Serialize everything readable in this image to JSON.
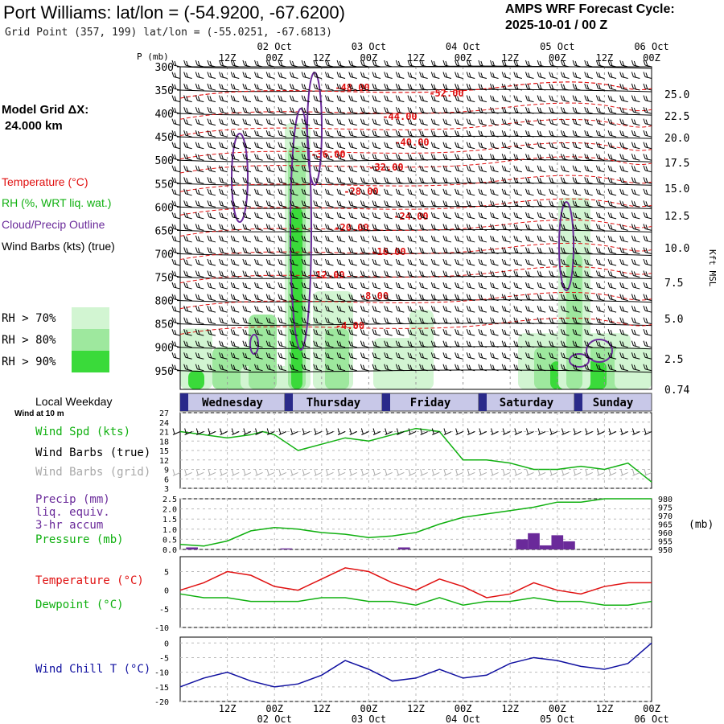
{
  "header": {
    "location_title": "Port Williams:  lat/lon = (-54.9200, -67.6200)",
    "grid_point": "Grid Point (357, 199) lat/lon = (-55.0251, -67.6813)",
    "forecast_title": "AMPS WRF Forecast Cycle:",
    "forecast_cycle": "2025-10-01 / 00  Z"
  },
  "side_labels": {
    "model_grid": "Model Grid ΔX:",
    "grid_spacing": "24.000 km",
    "temperature": "Temperature (°C)",
    "rh": "RH (%, WRT liq. wat.)",
    "cloud": "Cloud/Precip Outline",
    "wind": "Wind Barbs (kts) (true)",
    "rh_legend": [
      "RH > 70%",
      "RH > 80%",
      "RH > 90%"
    ],
    "local_weekday": "Local Weekday",
    "wind_at_10m": "Wind at 10 m",
    "wind_spd": "Wind Spd (kts)",
    "wind_barbs_true": "Wind Barbs (true)",
    "wind_barbs_grid": "Wind Barbs (grid)",
    "precip": "Precip (mm)",
    "liq_equiv": "liq. equiv.",
    "accum": "3-hr accum",
    "pressure": "Pressure (mb)",
    "temp_panel": "Temperature (°C)",
    "dewpoint": "Dewpoint (°C)",
    "wind_chill": "Wind Chill T (°C)"
  },
  "colors": {
    "temp": "#e01010",
    "green": "#10b010",
    "purple": "#6a2a9a",
    "blue": "#1010a0",
    "rh70": "#d2f5d2",
    "rh80": "#9ee89e",
    "rh90": "#3ada3a"
  },
  "chart_data": [
    {
      "type": "time-height cross section",
      "name": "upper-air",
      "ylabel_left": "P (mb)",
      "ylabel_right": "Kft MSL",
      "pressure_ticks": [
        300,
        350,
        400,
        450,
        500,
        550,
        600,
        650,
        700,
        750,
        800,
        850,
        900,
        950
      ],
      "height_ticks": [
        "25.0",
        "22.5",
        "20.0",
        "17.5",
        "15.0",
        "12.5",
        "10.0",
        "7.5",
        "5.0",
        "2.5",
        "0.74"
      ],
      "time_ticks_top": [
        "12Z",
        "00Z",
        "12Z",
        "00Z",
        "12Z",
        "00Z",
        "12Z",
        "00Z",
        "12Z",
        "00Z"
      ],
      "date_ticks": [
        "02 Oct",
        "03 Oct",
        "04 Oct",
        "05 Oct",
        "06 Oct"
      ],
      "temperature_contour_labels": [
        "-48.00",
        "-52.00",
        "-44.00",
        "-40.00",
        "-36.00",
        "-32.00",
        "-28.00",
        "-24.00",
        "-20.00",
        "-16.00",
        "-12.00",
        "-8.00",
        "-4.00"
      ]
    },
    {
      "type": "band",
      "name": "local-weekday",
      "days": [
        "Wednesday",
        "Thursday",
        "Friday",
        "Saturday",
        "Sunday"
      ]
    },
    {
      "type": "line",
      "name": "wind-speed",
      "ylabel": "Wind Spd (kts)",
      "yticks": [
        3,
        6,
        9,
        12,
        15,
        18,
        21,
        24,
        27
      ],
      "ylim": [
        3,
        27
      ],
      "x_hours": [
        0,
        6,
        12,
        18,
        21,
        24,
        30,
        36,
        42,
        48,
        54,
        60,
        66,
        72,
        78,
        84,
        90,
        96,
        102,
        108,
        114,
        120
      ],
      "values": [
        21,
        20,
        19,
        20,
        21,
        20,
        15,
        17,
        19,
        18,
        20,
        22,
        21,
        12,
        12,
        11,
        9,
        9,
        10,
        9,
        11,
        5
      ]
    },
    {
      "type": "bar+line",
      "name": "precip-pressure",
      "ylabel_left": "Precip (mm)",
      "ylabel_right": "(mb)",
      "precip_yticks": [
        "0.0",
        "0.5",
        "1.0",
        "1.5",
        "2.0",
        "2.5"
      ],
      "precip_ylim": [
        0,
        2.5
      ],
      "pressure_yticks": [
        950,
        955,
        960,
        965,
        970,
        975,
        980
      ],
      "pressure_ylim": [
        950,
        980
      ],
      "precip_bars": [
        {
          "hour": 3,
          "value": 0.1
        },
        {
          "hour": 27,
          "value": 0.05
        },
        {
          "hour": 57,
          "value": 0.1
        },
        {
          "hour": 87,
          "value": 0.5
        },
        {
          "hour": 90,
          "value": 0.8
        },
        {
          "hour": 93,
          "value": 0.2
        },
        {
          "hour": 96,
          "value": 0.7
        },
        {
          "hour": 99,
          "value": 0.4
        }
      ],
      "pressure_hours": [
        0,
        6,
        12,
        18,
        24,
        30,
        36,
        42,
        48,
        54,
        60,
        66,
        72,
        78,
        84,
        90,
        96,
        102,
        108,
        114,
        120
      ],
      "pressure_values": [
        953,
        952,
        955,
        961,
        963,
        962,
        960,
        959,
        957,
        958,
        960,
        965,
        969,
        971,
        973,
        975,
        978,
        978,
        980,
        980,
        980
      ]
    },
    {
      "type": "line",
      "name": "temperature-dewpoint",
      "yticks": [
        5,
        0,
        -5,
        -10
      ],
      "ylim": [
        -10,
        9
      ],
      "x_hours": [
        0,
        6,
        12,
        18,
        24,
        30,
        36,
        42,
        48,
        54,
        60,
        66,
        72,
        78,
        84,
        90,
        96,
        102,
        108,
        114,
        120
      ],
      "series": [
        {
          "name": "Temperature (°C)",
          "values": [
            0,
            2,
            5,
            4,
            1,
            0,
            3,
            6,
            5,
            2,
            0,
            3,
            1,
            -2,
            -1,
            2,
            0,
            -1,
            1,
            2,
            2
          ]
        },
        {
          "name": "Dewpoint (°C)",
          "values": [
            -1,
            -2,
            -2,
            -3,
            -3,
            -3,
            -2,
            -2,
            -3,
            -3,
            -4,
            -2,
            -4,
            -3,
            -3,
            -2,
            -3,
            -3,
            -4,
            -4,
            -3
          ]
        }
      ]
    },
    {
      "type": "line",
      "name": "wind-chill",
      "ylabel": "Wind Chill T (°C)",
      "yticks": [
        0,
        -5,
        -10,
        -15,
        -20
      ],
      "ylim": [
        -20,
        2
      ],
      "x_hours": [
        0,
        6,
        12,
        18,
        24,
        30,
        36,
        42,
        48,
        54,
        60,
        66,
        72,
        78,
        84,
        90,
        96,
        102,
        108,
        114,
        120
      ],
      "values": [
        -15,
        -12,
        -10,
        -13,
        -15,
        -14,
        -11,
        -6,
        -9,
        -13,
        -12,
        -9,
        -12,
        -11,
        -7,
        -5,
        -6,
        -8,
        -9,
        -7,
        0
      ],
      "time_ticks_bottom": [
        "12Z",
        "00Z",
        "12Z",
        "00Z",
        "12Z",
        "00Z",
        "12Z",
        "00Z",
        "12Z",
        "00Z"
      ],
      "date_ticks_bottom": [
        "02 Oct",
        "03 Oct",
        "04 Oct",
        "05 Oct",
        "06 Oct"
      ]
    }
  ]
}
